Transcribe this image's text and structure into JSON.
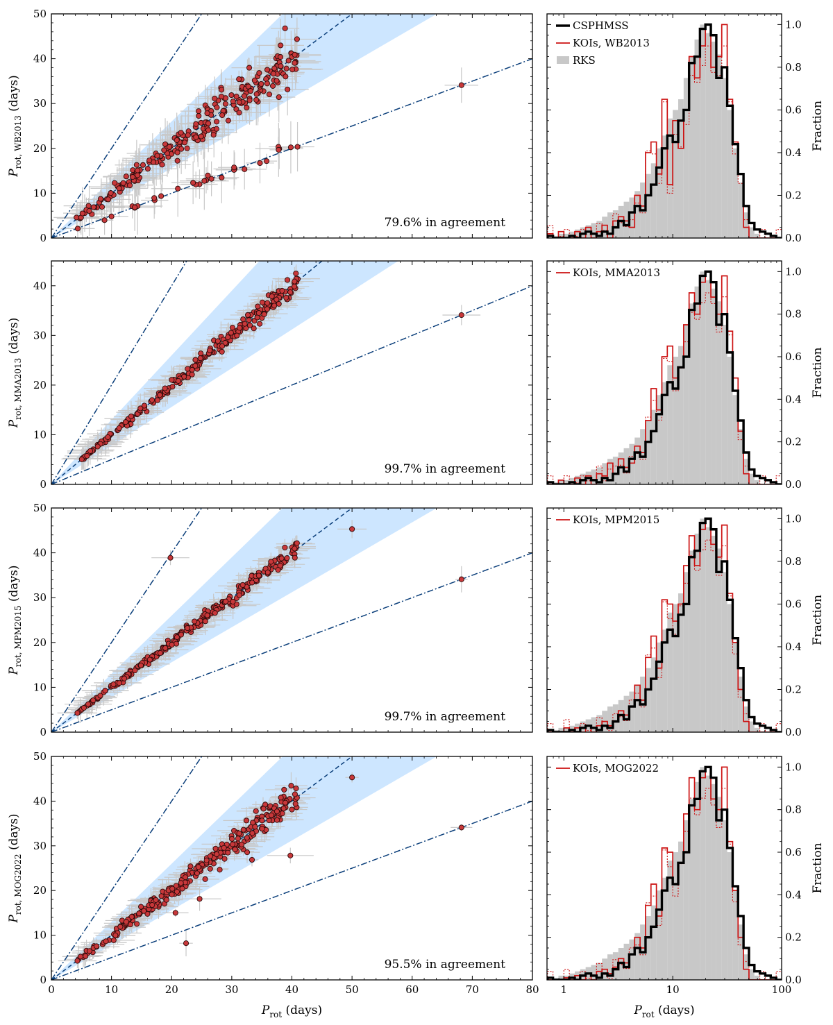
{
  "figure": {
    "xlabel_main": "P",
    "xlabel_sub": "rot",
    "xlabel_unit": "(days)",
    "ylabel_right": "Fraction",
    "colors": {
      "points": "#c8383a",
      "band": "#cde6ff",
      "line": "#0a3e7a",
      "csphmss": "#000000",
      "koi": "#cc1111",
      "rks": "#c8c8c8",
      "errorbar": "#c8c8c8"
    }
  },
  "chart_data": [
    {
      "type": "scatter",
      "ylabel_main": "P",
      "ylabel_sub": "rot, WB2013",
      "ylabel_unit": "(days)",
      "xlabel": "P_rot (days)",
      "xlim": [
        0,
        80
      ],
      "ylim": [
        0,
        50
      ],
      "yticks": [
        0,
        10,
        20,
        30,
        40,
        50
      ],
      "agreement_text": "79.6% in agreement",
      "reference_lines": [
        {
          "slope": 2,
          "style": "dashdot"
        },
        {
          "slope": 1,
          "style": "dashed"
        },
        {
          "slope": 0.5,
          "style": "dashdot"
        }
      ],
      "agreement_band": {
        "lower_slope": 0.78,
        "upper_slope": 1.3
      },
      "note": "approx. 280 stars, mostly near y=x, plus harmonic branch near y=x/2"
    },
    {
      "type": "scatter",
      "ylabel_main": "P",
      "ylabel_sub": "rot, MMA2013",
      "ylabel_unit": "(days)",
      "xlabel": "P_rot (days)",
      "xlim": [
        0,
        80
      ],
      "ylim": [
        0,
        45
      ],
      "yticks": [
        0,
        10,
        20,
        30,
        40
      ],
      "agreement_text": "99.7% in agreement",
      "reference_lines": [
        {
          "slope": 2,
          "style": "dashdot"
        },
        {
          "slope": 1,
          "style": "dashed"
        },
        {
          "slope": 0.5,
          "style": "dashdot"
        }
      ],
      "agreement_band": {
        "lower_slope": 0.78,
        "upper_slope": 1.3
      },
      "note": "approx. 250 stars tightly along y=x"
    },
    {
      "type": "scatter",
      "ylabel_main": "P",
      "ylabel_sub": "rot, MPM2015",
      "ylabel_unit": "(days)",
      "xlabel": "P_rot (days)",
      "xlim": [
        0,
        80
      ],
      "ylim": [
        0,
        50
      ],
      "yticks": [
        0,
        10,
        20,
        30,
        40,
        50
      ],
      "agreement_text": "99.7% in agreement",
      "reference_lines": [
        {
          "slope": 2,
          "style": "dashdot"
        },
        {
          "slope": 1,
          "style": "dashed"
        },
        {
          "slope": 0.5,
          "style": "dashdot"
        }
      ],
      "agreement_band": {
        "lower_slope": 0.78,
        "upper_slope": 1.3
      },
      "note": "approx. 260 stars tightly along y=x"
    },
    {
      "type": "scatter",
      "ylabel_main": "P",
      "ylabel_sub": "rot, MOG2022",
      "ylabel_unit": "(days)",
      "xlabel": "P_rot (days)",
      "xlim": [
        0,
        80
      ],
      "ylim": [
        0,
        50
      ],
      "yticks": [
        0,
        10,
        20,
        30,
        40,
        50
      ],
      "agreement_text": "95.5% in agreement",
      "reference_lines": [
        {
          "slope": 2,
          "style": "dashdot"
        },
        {
          "slope": 1,
          "style": "dashed"
        },
        {
          "slope": 0.5,
          "style": "dashdot"
        }
      ],
      "agreement_band": {
        "lower_slope": 0.78,
        "upper_slope": 1.3
      },
      "note": "approx. 280 stars along y=x with some scatter"
    },
    {
      "type": "histogram",
      "xscale": "log",
      "xlim": [
        0.7,
        100
      ],
      "ylim": [
        0,
        1.05
      ],
      "yticks": [
        0.0,
        0.2,
        0.4,
        0.6,
        0.8,
        1.0
      ],
      "xtick_labels": [
        "1",
        "10",
        "100"
      ],
      "xlabel": "P_rot (days)",
      "ylabel": "Fraction",
      "legend": [
        {
          "label": "CSPHMSS",
          "style": "thick-black-line"
        },
        {
          "label": "KOIs,  WB2013",
          "style": "red-line"
        },
        {
          "label": "RKS",
          "style": "gray-patch"
        }
      ],
      "koi_catalog": "WB2013"
    },
    {
      "type": "histogram",
      "xscale": "log",
      "xlim": [
        0.7,
        100
      ],
      "ylim": [
        0,
        1.05
      ],
      "yticks": [
        0.0,
        0.2,
        0.4,
        0.6,
        0.8,
        1.0
      ],
      "ylabel": "Fraction",
      "legend": [
        {
          "label": "KOIs,  MMA2013",
          "style": "red-line"
        }
      ],
      "koi_catalog": "MMA2013"
    },
    {
      "type": "histogram",
      "xscale": "log",
      "xlim": [
        0.7,
        100
      ],
      "ylim": [
        0,
        1.05
      ],
      "yticks": [
        0.0,
        0.2,
        0.4,
        0.6,
        0.8,
        1.0
      ],
      "ylabel": "Fraction",
      "legend": [
        {
          "label": "KOIs,  MPM2015",
          "style": "red-line"
        }
      ],
      "koi_catalog": "MPM2015"
    },
    {
      "type": "histogram",
      "xscale": "log",
      "xlim": [
        0.7,
        100
      ],
      "ylim": [
        0,
        1.05
      ],
      "yticks": [
        0.0,
        0.2,
        0.4,
        0.6,
        0.8,
        1.0
      ],
      "ylabel": "Fraction",
      "legend": [
        {
          "label": "KOIs,  MOG2022",
          "style": "red-line"
        }
      ],
      "koi_catalog": "MOG2022"
    }
  ],
  "histogram_data": {
    "log_bin_width": 0.05,
    "log_start": -0.15,
    "csphmss": [
      0.01,
      0.0,
      0.0,
      0.0,
      0.01,
      0.0,
      0.02,
      0.03,
      0.02,
      0.01,
      0.03,
      0.02,
      0.05,
      0.08,
      0.06,
      0.12,
      0.15,
      0.13,
      0.2,
      0.25,
      0.33,
      0.42,
      0.48,
      0.45,
      0.55,
      0.6,
      0.82,
      0.85,
      0.98,
      1.0,
      0.95,
      0.75,
      0.8,
      0.62,
      0.44,
      0.3,
      0.15,
      0.07,
      0.04,
      0.03,
      0.02,
      0.01,
      0.0
    ],
    "rks": [
      0.0,
      0.01,
      0.02,
      0.02,
      0.03,
      0.04,
      0.05,
      0.06,
      0.07,
      0.08,
      0.1,
      0.12,
      0.13,
      0.15,
      0.17,
      0.19,
      0.22,
      0.26,
      0.3,
      0.35,
      0.42,
      0.48,
      0.56,
      0.6,
      0.65,
      0.75,
      0.85,
      0.93,
      1.0,
      0.96,
      0.92,
      0.86,
      0.75,
      0.6,
      0.42,
      0.26,
      0.12,
      0.05,
      0.02,
      0.0,
      0.0,
      0.0,
      0.0
    ],
    "koi": {
      "WB2013": [
        0.02,
        0.0,
        0.03,
        0.0,
        0.0,
        0.03,
        0.0,
        0.05,
        0.0,
        0.03,
        0.06,
        0.0,
        0.08,
        0.1,
        0.08,
        0.05,
        0.2,
        0.15,
        0.4,
        0.45,
        0.3,
        0.65,
        0.25,
        0.55,
        0.42,
        0.6,
        0.85,
        0.75,
        0.9,
        1.0,
        0.8,
        0.85,
        1.0,
        0.65,
        0.45,
        0.3,
        0.05,
        0.0,
        0.0,
        0.0,
        0.0,
        0.0,
        0.0
      ],
      "MMA2013": [
        0.0,
        0.0,
        0.02,
        0.0,
        0.0,
        0.03,
        0.0,
        0.04,
        0.0,
        0.05,
        0.04,
        0.1,
        0.05,
        0.12,
        0.08,
        0.1,
        0.18,
        0.15,
        0.3,
        0.45,
        0.35,
        0.6,
        0.65,
        0.5,
        0.55,
        0.75,
        0.9,
        0.8,
        0.95,
        1.0,
        0.88,
        0.8,
        0.98,
        0.72,
        0.5,
        0.25,
        0.05,
        0.0,
        0.0,
        0.0,
        0.0,
        0.0,
        0.0
      ],
      "MPM2015": [
        0.0,
        0.0,
        0.0,
        0.02,
        0.0,
        0.02,
        0.0,
        0.03,
        0.0,
        0.03,
        0.05,
        0.03,
        0.05,
        0.1,
        0.08,
        0.12,
        0.22,
        0.15,
        0.35,
        0.45,
        0.3,
        0.62,
        0.6,
        0.52,
        0.6,
        0.78,
        0.92,
        0.78,
        0.95,
        1.0,
        0.88,
        0.82,
        0.97,
        0.65,
        0.42,
        0.2,
        0.05,
        0.0,
        0.0,
        0.0,
        0.0,
        0.0,
        0.0
      ],
      "MOG2022": [
        0.0,
        0.0,
        0.0,
        0.01,
        0.0,
        0.02,
        0.0,
        0.03,
        0.0,
        0.04,
        0.05,
        0.03,
        0.06,
        0.1,
        0.08,
        0.12,
        0.2,
        0.15,
        0.35,
        0.45,
        0.3,
        0.62,
        0.6,
        0.45,
        0.55,
        0.78,
        0.95,
        0.8,
        0.95,
        1.0,
        0.85,
        0.8,
        1.0,
        0.65,
        0.42,
        0.2,
        0.05,
        0.0,
        0.0,
        0.0,
        0.0,
        0.0,
        0.0
      ]
    }
  }
}
